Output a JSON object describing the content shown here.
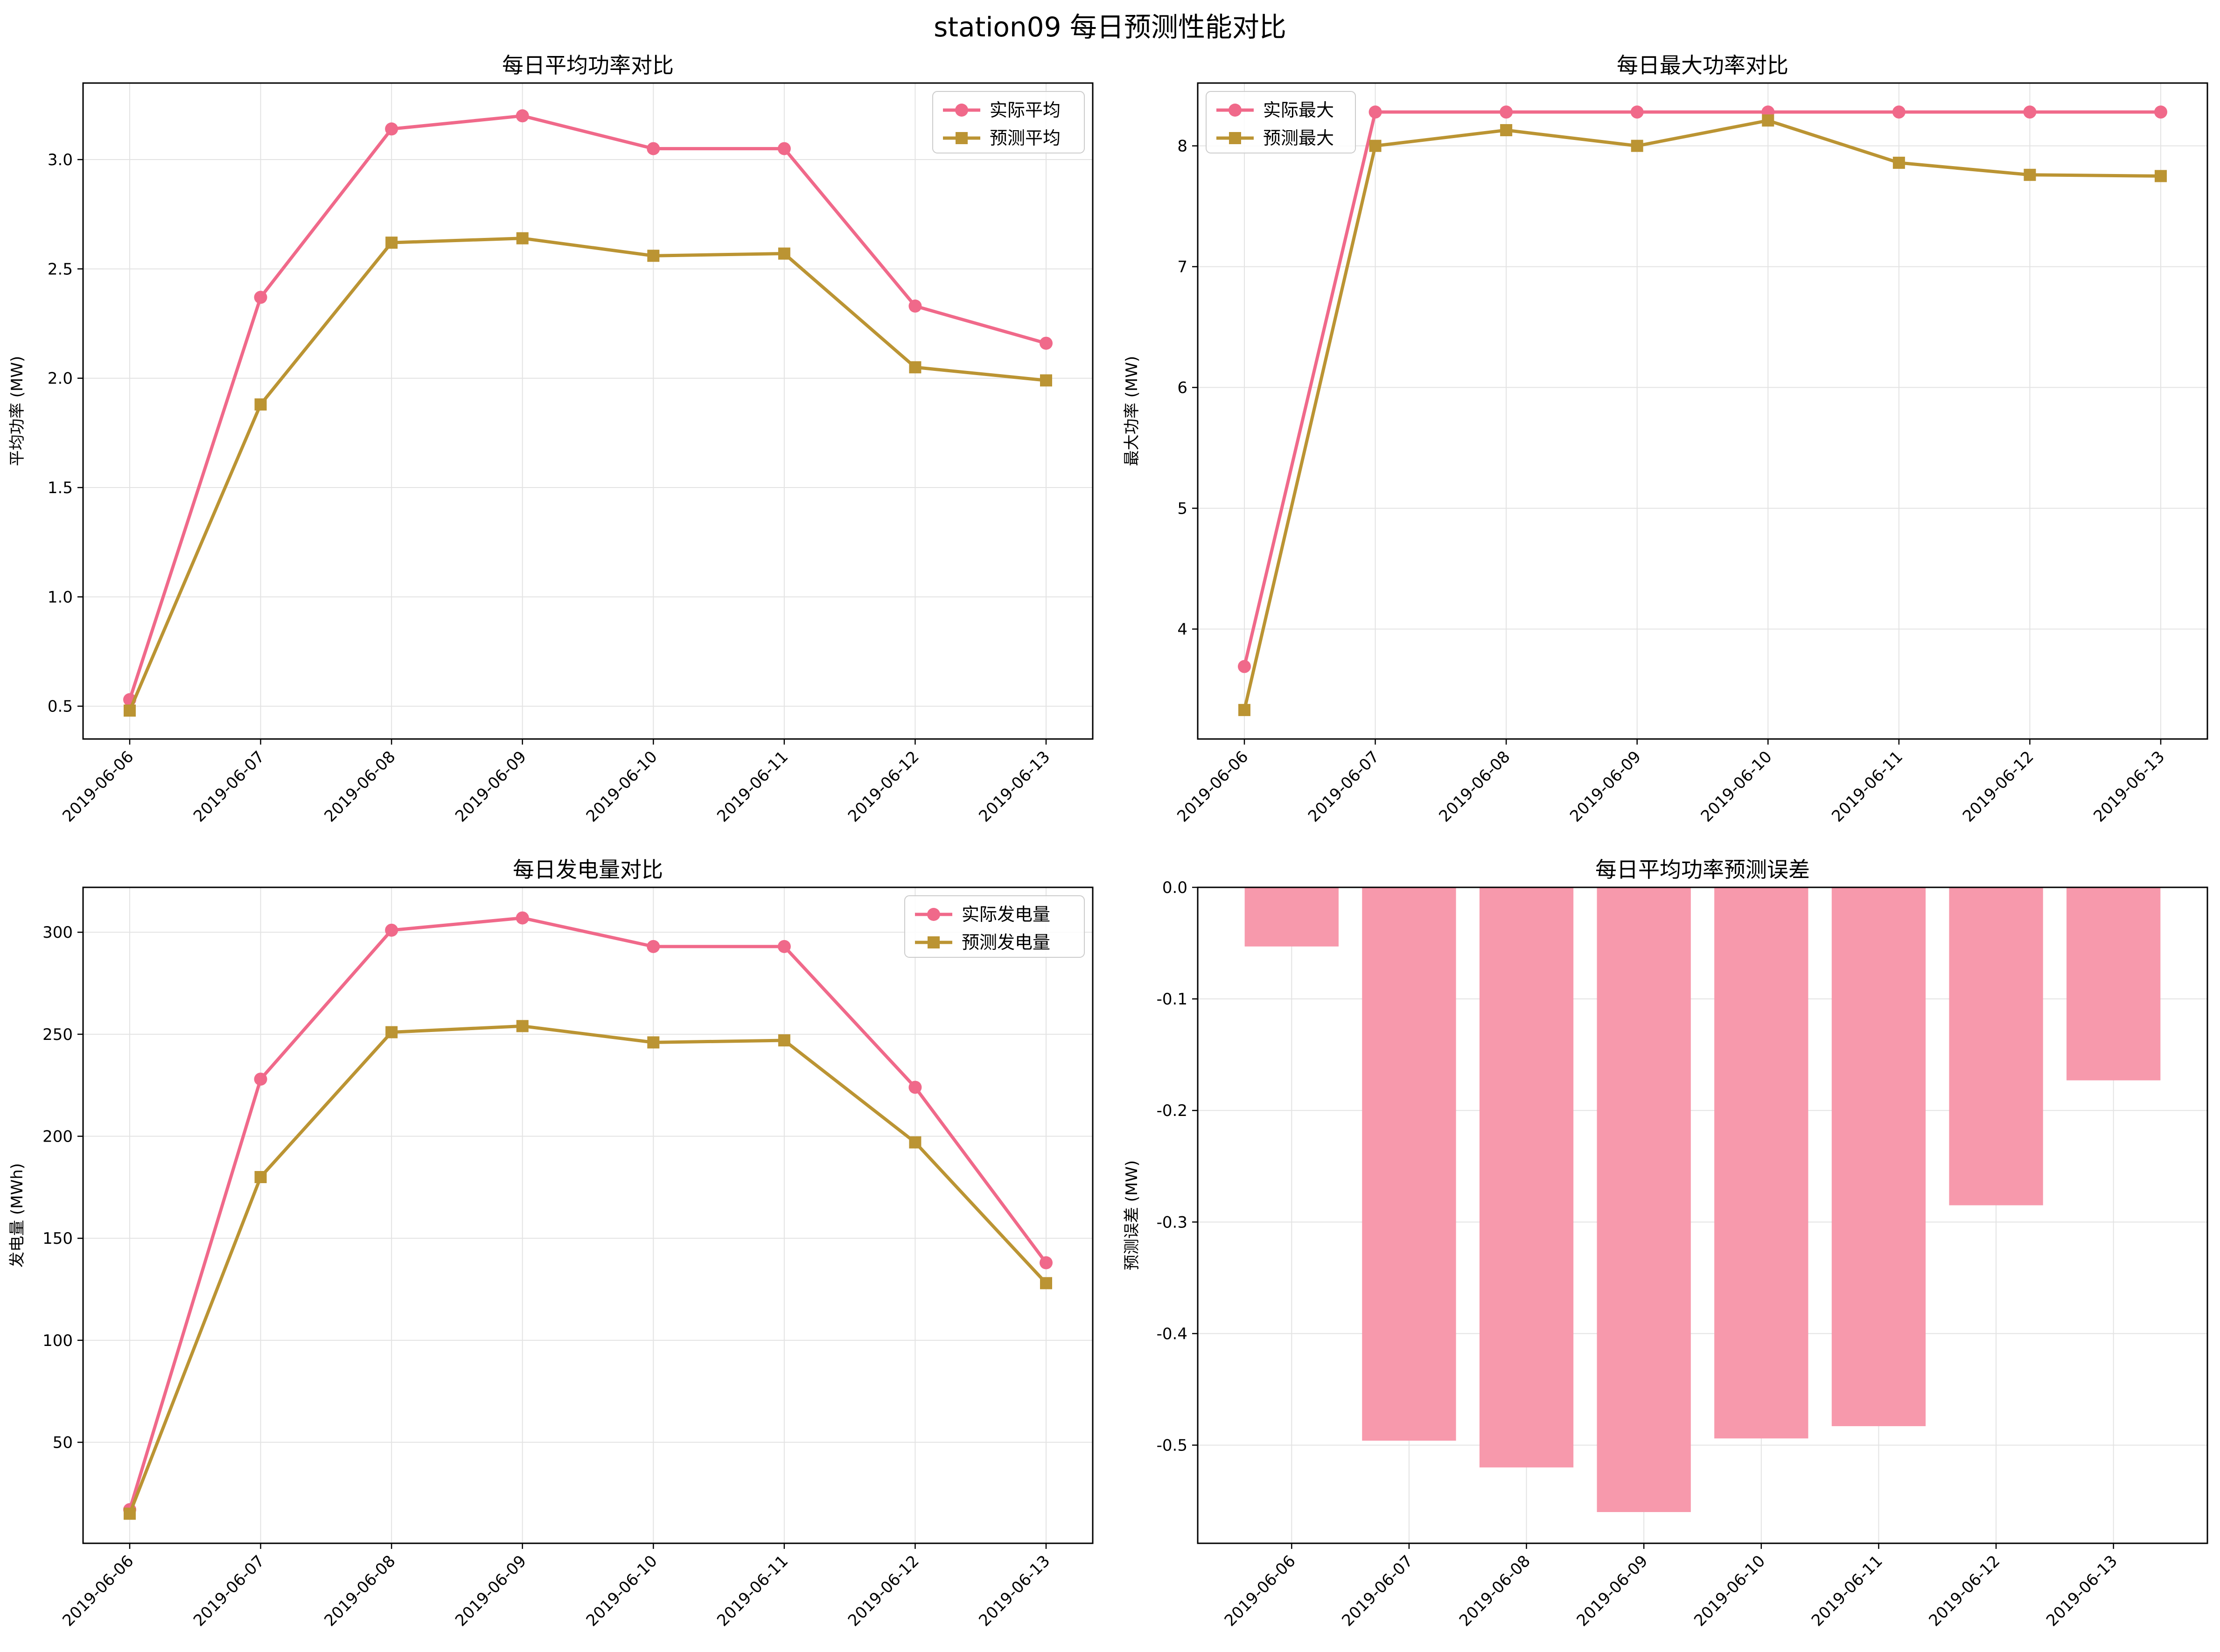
{
  "figure": {
    "title": "station09 每日预测性能对比"
  },
  "colors": {
    "actual": "#f0698a",
    "predicted": "#bb9433",
    "bar": "#f799ac",
    "grid": "#e3e3e3"
  },
  "chart_data": [
    {
      "type": "line",
      "title": "每日平均功率对比",
      "xlabel": "",
      "ylabel": "平均功率 (MW)",
      "categories": [
        "2019-06-06",
        "2019-06-07",
        "2019-06-08",
        "2019-06-09",
        "2019-06-10",
        "2019-06-11",
        "2019-06-12",
        "2019-06-13"
      ],
      "series": [
        {
          "name": "实际平均",
          "marker": "circle",
          "values": [
            0.53,
            2.37,
            3.14,
            3.2,
            3.05,
            3.05,
            2.33,
            2.16
          ]
        },
        {
          "name": "预测平均",
          "marker": "square",
          "values": [
            0.48,
            1.88,
            2.62,
            2.64,
            2.56,
            2.57,
            2.05,
            1.99
          ]
        }
      ],
      "ylim": [
        0.35,
        3.35
      ],
      "yticks": [
        0.5,
        1.0,
        1.5,
        2.0,
        2.5,
        3.0
      ],
      "yticklabels": [
        "0.5",
        "1.0",
        "1.5",
        "2.0",
        "2.5",
        "3.0"
      ],
      "legend": "top-right",
      "grid": true
    },
    {
      "type": "line",
      "title": "每日最大功率对比",
      "xlabel": "",
      "ylabel": "最大功率 (MW)",
      "categories": [
        "2019-06-06",
        "2019-06-07",
        "2019-06-08",
        "2019-06-09",
        "2019-06-10",
        "2019-06-11",
        "2019-06-12",
        "2019-06-13"
      ],
      "series": [
        {
          "name": "实际最大",
          "marker": "circle",
          "values": [
            3.69,
            8.28,
            8.28,
            8.28,
            8.28,
            8.28,
            8.28,
            8.28
          ]
        },
        {
          "name": "预测最大",
          "marker": "square",
          "values": [
            3.33,
            8.0,
            8.13,
            8.0,
            8.21,
            7.86,
            7.76,
            7.75
          ]
        }
      ],
      "ylim": [
        3.09,
        8.52
      ],
      "yticks": [
        4,
        5,
        6,
        7,
        8
      ],
      "yticklabels": [
        "4",
        "5",
        "6",
        "7",
        "8"
      ],
      "legend": "top-left",
      "grid": true
    },
    {
      "type": "line",
      "title": "每日发电量对比",
      "xlabel": "",
      "ylabel": "发电量 (MWh)",
      "categories": [
        "2019-06-06",
        "2019-06-07",
        "2019-06-08",
        "2019-06-09",
        "2019-06-10",
        "2019-06-11",
        "2019-06-12",
        "2019-06-13"
      ],
      "series": [
        {
          "name": "实际发电量",
          "marker": "circle",
          "values": [
            17,
            228,
            301,
            307,
            293,
            293,
            224,
            138
          ]
        },
        {
          "name": "预测发电量",
          "marker": "square",
          "values": [
            15,
            180,
            251,
            254,
            246,
            247,
            197,
            128
          ]
        }
      ],
      "ylim": [
        0.5,
        322
      ],
      "yticks": [
        50,
        100,
        150,
        200,
        250,
        300
      ],
      "yticklabels": [
        "50",
        "100",
        "150",
        "200",
        "250",
        "300"
      ],
      "legend": "top-right",
      "grid": true
    },
    {
      "type": "bar",
      "title": "每日平均功率预测误差",
      "xlabel": "",
      "ylabel": "预测误差 (MW)",
      "categories": [
        "2019-06-06",
        "2019-06-07",
        "2019-06-08",
        "2019-06-09",
        "2019-06-10",
        "2019-06-11",
        "2019-06-12",
        "2019-06-13"
      ],
      "values": [
        -0.053,
        -0.496,
        -0.52,
        -0.56,
        -0.494,
        -0.483,
        -0.285,
        -0.173
      ],
      "ylim": [
        -0.588,
        0.0
      ],
      "yticks": [
        0.0,
        -0.1,
        -0.2,
        -0.3,
        -0.4,
        -0.5
      ],
      "yticklabels": [
        "0.0",
        "-0.1",
        "-0.2",
        "-0.3",
        "-0.4",
        "-0.5"
      ],
      "zero_line": "dashed",
      "grid": true
    }
  ]
}
